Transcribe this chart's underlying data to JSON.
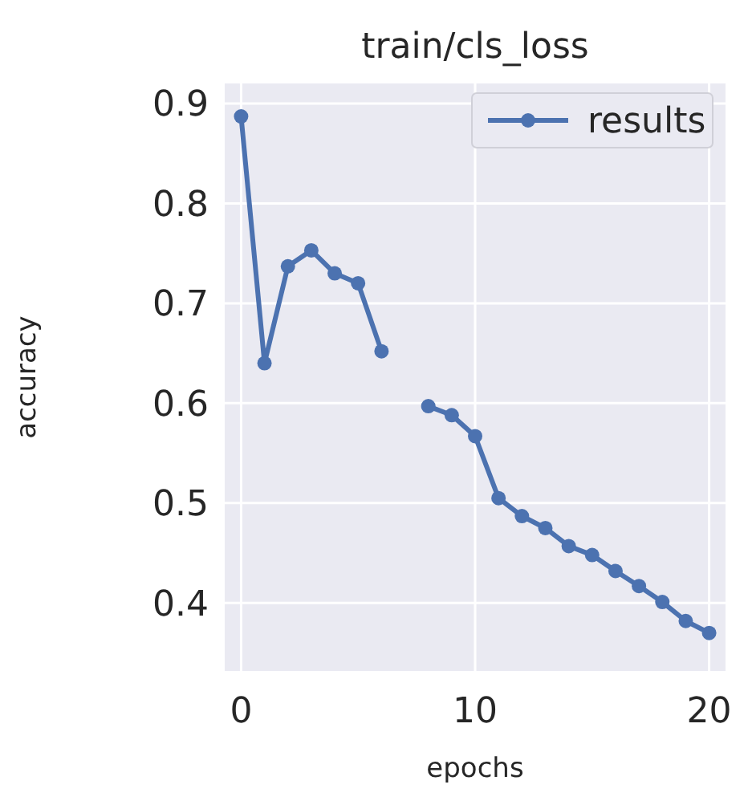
{
  "chart_data": {
    "type": "line",
    "title": "train/cls_loss",
    "xlabel": "epochs",
    "ylabel": "accuracy",
    "x": [
      0,
      1,
      2,
      3,
      4,
      5,
      6,
      7,
      8,
      9,
      10,
      11,
      12,
      13,
      14,
      15,
      16,
      17,
      18,
      19,
      20
    ],
    "series": [
      {
        "name": "results",
        "color": "#4c72b0",
        "values": [
          0.887,
          0.64,
          0.737,
          0.753,
          0.73,
          0.72,
          0.652,
          null,
          0.597,
          0.588,
          0.567,
          0.505,
          0.487,
          0.475,
          0.457,
          0.448,
          0.432,
          0.417,
          0.401,
          0.382,
          0.37
        ]
      }
    ],
    "xlim": [
      -0.7,
      20.7
    ],
    "ylim": [
      0.332,
      0.92
    ],
    "xticks": [
      0,
      10,
      20
    ],
    "yticks": [
      0.4,
      0.5,
      0.6,
      0.7,
      0.8,
      0.9
    ],
    "grid": true,
    "legend": "top right",
    "marker": "circle",
    "line_style": "solid"
  }
}
